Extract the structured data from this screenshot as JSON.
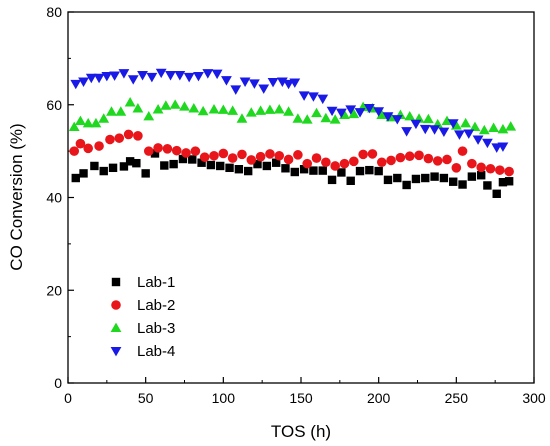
{
  "chart_data": {
    "type": "scatter",
    "xlabel": "TOS (h)",
    "ylabel": "CO Conversion (%)",
    "xlim": [
      0,
      300
    ],
    "ylim": [
      0,
      80
    ],
    "xticks": [
      0,
      50,
      100,
      150,
      200,
      250,
      300
    ],
    "yticks": [
      0,
      20,
      40,
      60,
      80
    ],
    "grid": false,
    "legend_position": "bottom-left",
    "series": [
      {
        "name": "Lab-1",
        "marker": "square",
        "color": "#000000",
        "x": [
          5,
          10,
          17,
          23,
          29,
          36,
          40,
          44,
          50,
          56,
          62,
          68,
          74,
          80,
          86,
          92,
          98,
          104,
          110,
          116,
          122,
          128,
          134,
          140,
          146,
          152,
          158,
          164,
          170,
          176,
          182,
          188,
          194,
          200,
          206,
          212,
          218,
          224,
          230,
          236,
          242,
          248,
          254,
          260,
          266,
          270,
          276,
          280,
          284
        ],
        "y": [
          44.2,
          45.2,
          46.8,
          45.7,
          46.4,
          46.7,
          47.8,
          47.4,
          45.2,
          49.5,
          46.9,
          47.2,
          48.3,
          48.2,
          47.5,
          47.0,
          46.8,
          46.4,
          46.1,
          45.7,
          47.2,
          46.8,
          47.5,
          46.3,
          45.5,
          46.1,
          45.8,
          45.8,
          43.8,
          45.4,
          43.6,
          45.7,
          45.9,
          45.7,
          43.8,
          44.2,
          42.7,
          44.0,
          44.2,
          44.5,
          44.2,
          43.4,
          42.8,
          44.5,
          44.8,
          42.6,
          40.8,
          43.3,
          43.5
        ]
      },
      {
        "name": "Lab-2",
        "marker": "circle",
        "color": "#e8161a",
        "x": [
          4,
          8,
          13,
          20,
          27,
          33,
          39,
          45,
          52,
          58,
          64,
          70,
          76,
          82,
          88,
          94,
          100,
          106,
          112,
          118,
          124,
          130,
          136,
          142,
          148,
          154,
          160,
          166,
          172,
          178,
          184,
          190,
          196,
          202,
          208,
          214,
          220,
          226,
          232,
          238,
          244,
          250,
          254,
          260,
          266,
          272,
          278,
          284
        ],
        "y": [
          50.0,
          51.6,
          50.6,
          51.1,
          52.5,
          52.8,
          53.6,
          53.3,
          50.0,
          50.7,
          50.5,
          50.1,
          49.6,
          50.0,
          48.7,
          49.0,
          49.5,
          48.5,
          49.3,
          48.1,
          48.8,
          49.4,
          49.0,
          48.2,
          49.2,
          47.3,
          48.5,
          47.6,
          46.8,
          47.3,
          47.8,
          49.3,
          49.4,
          47.6,
          48.0,
          48.6,
          48.9,
          49.1,
          48.4,
          47.9,
          48.2,
          46.4,
          50.0,
          47.3,
          46.5,
          46.2,
          45.9,
          45.6
        ]
      },
      {
        "name": "Lab-3",
        "marker": "triangle-up",
        "color": "#1fd81f",
        "x": [
          4,
          8,
          13,
          18,
          23,
          28,
          34,
          40,
          45,
          52,
          58,
          63,
          69,
          75,
          81,
          87,
          94,
          100,
          106,
          112,
          118,
          124,
          130,
          136,
          142,
          148,
          154,
          160,
          166,
          172,
          178,
          184,
          190,
          196,
          202,
          208,
          214,
          220,
          226,
          232,
          238,
          244,
          250,
          256,
          262,
          268,
          274,
          280,
          285
        ],
        "y": [
          55.2,
          56.5,
          56.0,
          56.0,
          57.0,
          58.5,
          58.5,
          60.5,
          59.2,
          57.5,
          59.0,
          59.8,
          60.0,
          59.6,
          59.2,
          58.6,
          59.0,
          58.9,
          58.7,
          57.0,
          58.3,
          58.7,
          58.9,
          59.0,
          58.5,
          57.0,
          56.8,
          58.2,
          57.1,
          56.8,
          57.8,
          58.0,
          59.5,
          59.2,
          57.8,
          57.3,
          57.8,
          57.5,
          57.0,
          56.9,
          55.8,
          56.5,
          55.5,
          56.0,
          55.2,
          54.5,
          55.0,
          54.7,
          55.3
        ]
      },
      {
        "name": "Lab-4",
        "marker": "triangle-down",
        "color": "#1a1ae6",
        "x": [
          5,
          10,
          15,
          20,
          25,
          30,
          36,
          42,
          48,
          54,
          60,
          66,
          72,
          78,
          84,
          90,
          96,
          102,
          108,
          114,
          120,
          126,
          132,
          138,
          142,
          146,
          152,
          158,
          164,
          170,
          176,
          182,
          188,
          194,
          200,
          206,
          212,
          218,
          224,
          230,
          236,
          242,
          248,
          252,
          258,
          264,
          270,
          276,
          280
        ],
        "y": [
          64.5,
          65.0,
          65.8,
          65.8,
          66.2,
          66.3,
          66.8,
          65.5,
          66.4,
          66.0,
          66.9,
          66.4,
          66.4,
          66.0,
          66.2,
          66.8,
          66.7,
          65.3,
          63.3,
          65.0,
          64.6,
          63.5,
          64.9,
          65.0,
          64.5,
          64.8,
          62.0,
          61.8,
          61.3,
          58.7,
          58.3,
          59.0,
          58.4,
          59.3,
          58.6,
          57.5,
          56.9,
          54.3,
          55.9,
          54.8,
          54.7,
          54.2,
          56.0,
          53.6,
          53.8,
          52.5,
          51.8,
          50.8,
          51.0
        ]
      }
    ]
  }
}
